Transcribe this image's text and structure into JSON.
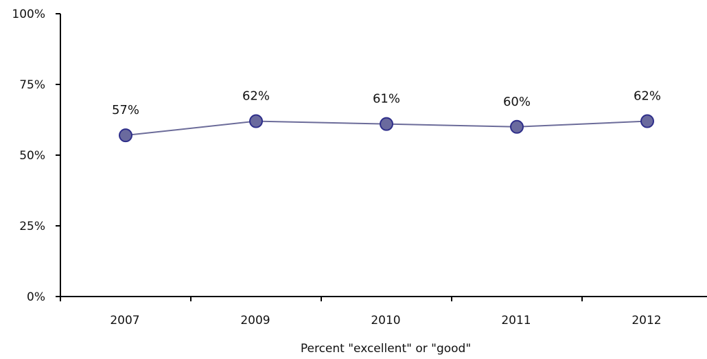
{
  "chart_data": {
    "type": "line",
    "title": "",
    "xlabel": "Percent \"excellent\" or \"good\"",
    "ylabel": "",
    "categories": [
      "2007",
      "2009",
      "2010",
      "2011",
      "2012"
    ],
    "series": [
      {
        "values": [
          57,
          62,
          61,
          60,
          62
        ],
        "data_labels": [
          "57%",
          "62%",
          "61%",
          "60%",
          "62%"
        ]
      }
    ],
    "ylim": [
      0,
      100
    ],
    "y_ticks": [
      0,
      25,
      50,
      75,
      100
    ],
    "y_tick_labels": [
      "0%",
      "25%",
      "50%",
      "75%",
      "100%"
    ],
    "grid": false,
    "legend": "none",
    "colors": {
      "line": "#6B6B99",
      "marker_fill": "#6A6A9E",
      "marker_stroke": "#2E2E8A",
      "axis": "#000000"
    }
  }
}
